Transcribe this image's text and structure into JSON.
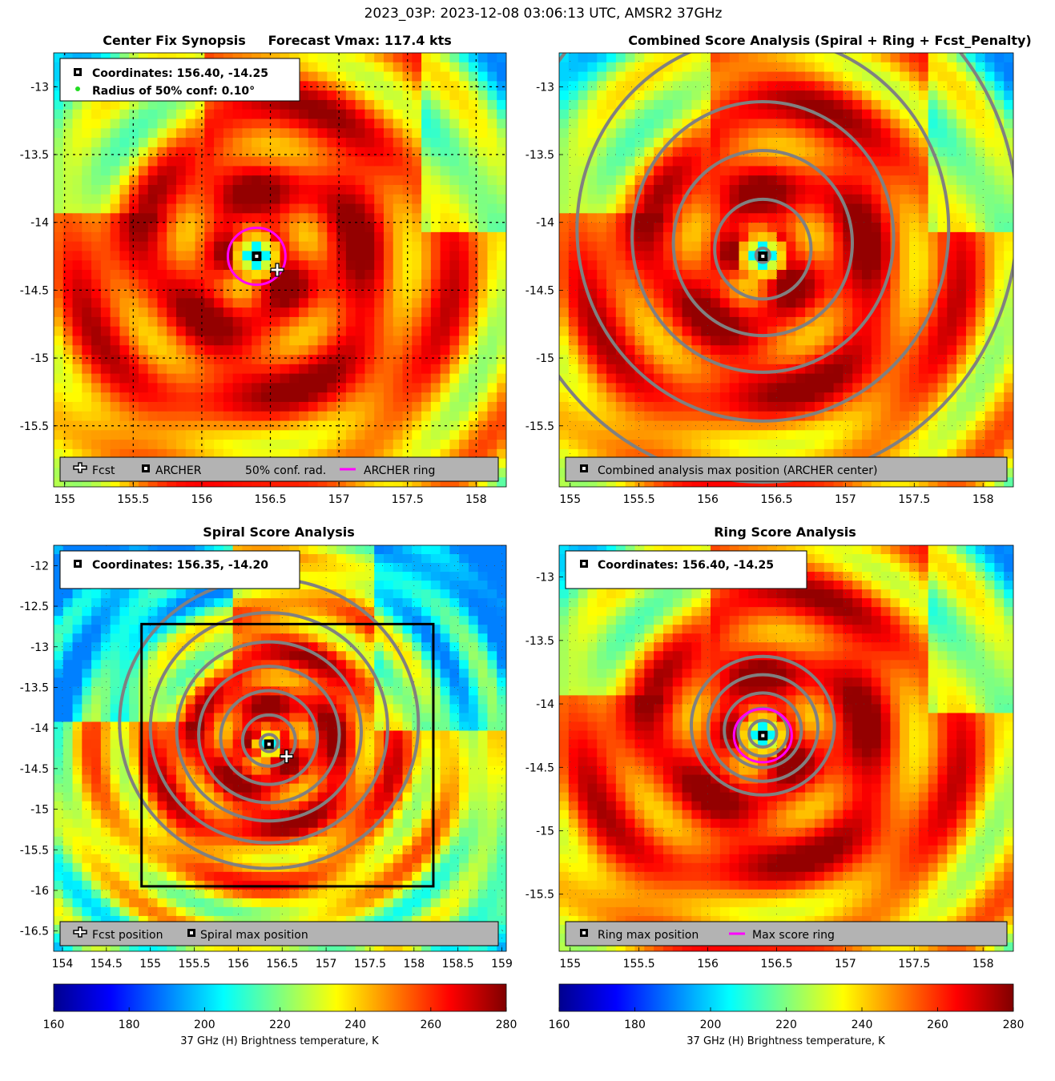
{
  "figure_title": "2023_03P: 2023-12-08 03:06:13 UTC, AMSR2 37GHz",
  "colors": {
    "archer_ring": "#ff00ff",
    "contour": "#808080",
    "legend_bg": "#b3b3b3",
    "green_dot": "#22dd22"
  },
  "chart_data": [
    {
      "id": "center_fix",
      "type": "heatmap",
      "title": "Center Fix Synopsis     Forecast Vmax: 117.4 kts",
      "xlim": [
        154.92,
        158.22
      ],
      "ylim": [
        -15.95,
        -12.75
      ],
      "xticks": [
        "155",
        "155.5",
        "156",
        "156.5",
        "157",
        "157.5",
        "158"
      ],
      "yticks": [
        "-13",
        "-13.5",
        "-14",
        "-14.5",
        "-15",
        "-15.5"
      ],
      "info_lines": [
        "Coordinates: 156.40, -14.25",
        "Radius of 50% conf: 0.10°"
      ],
      "legend": [
        "Fcst",
        "ARCHER",
        "50% conf. rad.",
        "ARCHER ring"
      ],
      "archer_center": [
        156.4,
        -14.25
      ],
      "forecast_center": [
        156.55,
        -14.35
      ],
      "ring_radius_deg": 0.21
    },
    {
      "id": "combined",
      "type": "heatmap",
      "title": "Combined Score Analysis (Spiral + Ring + Fcst_Penalty)",
      "xlim": [
        154.92,
        158.22
      ],
      "ylim": [
        -15.95,
        -12.75
      ],
      "xticks": [
        "155",
        "155.5",
        "156",
        "156.5",
        "157",
        "157.5",
        "158"
      ],
      "yticks": [
        "-13",
        "-13.5",
        "-14",
        "-14.5",
        "-15",
        "-15.5"
      ],
      "legend": [
        "Combined analysis max position (ARCHER center)"
      ],
      "center": [
        156.4,
        -14.25
      ],
      "contour_radii_deg": [
        0.05,
        0.35,
        0.65,
        0.95,
        1.35,
        1.85
      ]
    },
    {
      "id": "spiral",
      "type": "heatmap",
      "title": "Spiral Score Analysis",
      "xlim": [
        153.9,
        159.05
      ],
      "ylim": [
        -16.75,
        -11.75
      ],
      "xticks": [
        "154",
        "154.5",
        "155",
        "155.5",
        "156",
        "156.5",
        "157",
        "157.5",
        "158",
        "158.5",
        "159"
      ],
      "yticks": [
        "-12",
        "-12.5",
        "-13",
        "-13.5",
        "-14",
        "-14.5",
        "-15",
        "-15.5",
        "-16",
        "-16.5"
      ],
      "info_lines": [
        "Coordinates: 156.35, -14.20"
      ],
      "legend": [
        "Fcst position",
        "Spiral max position"
      ],
      "center": [
        156.35,
        -14.2
      ],
      "forecast_center": [
        156.55,
        -14.35
      ],
      "box": {
        "x": [
          154.9,
          158.22
        ],
        "y": [
          -15.95,
          -12.72
        ]
      },
      "contour_radii_deg": [
        0.1,
        0.3,
        0.55,
        0.8,
        1.05,
        1.35,
        1.7
      ]
    },
    {
      "id": "ring",
      "type": "heatmap",
      "title": "Ring Score Analysis",
      "xlim": [
        154.92,
        158.22
      ],
      "ylim": [
        -15.95,
        -12.75
      ],
      "xticks": [
        "155",
        "155.5",
        "156",
        "156.5",
        "157",
        "157.5",
        "158"
      ],
      "yticks": [
        "-13",
        "-13.5",
        "-14",
        "-14.5",
        "-15",
        "-15.5"
      ],
      "info_lines": [
        "Coordinates: 156.40, -14.25"
      ],
      "legend": [
        "Ring max position",
        "Max score ring"
      ],
      "center": [
        156.4,
        -14.25
      ],
      "ring_radius_deg": 0.21,
      "contour_radii_deg": [
        0.1,
        0.18,
        0.28,
        0.4,
        0.52
      ]
    }
  ],
  "colorbars": [
    {
      "label": "37 GHz (H) Brightness temperature, K",
      "ticks": [
        "160",
        "180",
        "200",
        "220",
        "240",
        "260",
        "280"
      ],
      "range": [
        160,
        280
      ]
    },
    {
      "label": "37 GHz (H) Brightness temperature, K",
      "ticks": [
        "160",
        "180",
        "200",
        "220",
        "240",
        "260",
        "280"
      ],
      "range": [
        160,
        280
      ]
    }
  ]
}
